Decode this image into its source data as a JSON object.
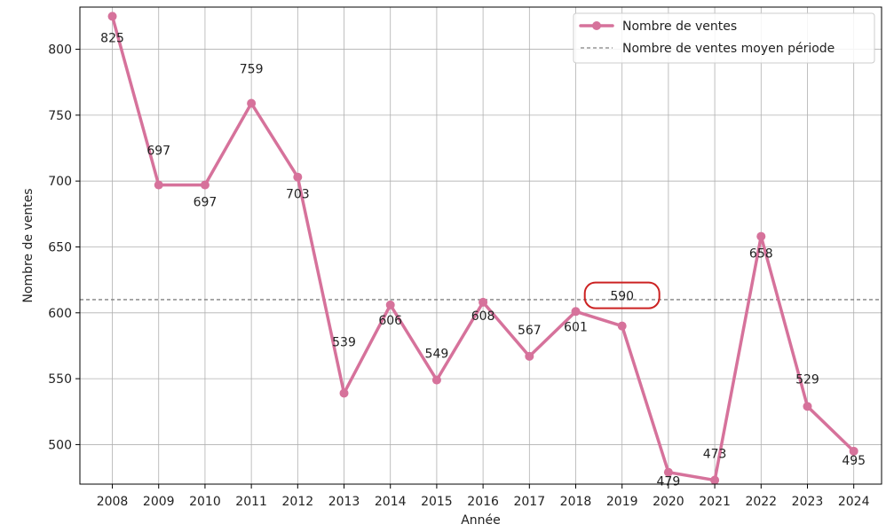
{
  "chart_data": {
    "type": "line",
    "title": "",
    "xlabel": "Année",
    "ylabel": "Nombre de ventes",
    "categories": [
      "2008",
      "2009",
      "2010",
      "2011",
      "2012",
      "2013",
      "2014",
      "2015",
      "2016",
      "2017",
      "2018",
      "2019",
      "2020",
      "2021",
      "2022",
      "2023",
      "2024"
    ],
    "series": [
      {
        "name": "Nombre de ventes",
        "values": [
          825,
          697,
          697,
          759,
          703,
          539,
          606,
          549,
          608,
          567,
          601,
          590,
          479,
          473,
          658,
          529,
          495
        ],
        "color": "#d6729b"
      }
    ],
    "reference_line": {
      "name": "Nombre de ventes moyen période",
      "value": 610,
      "color": "#808080",
      "style": "dashed"
    },
    "data_labels": [
      "825",
      "697",
      "697",
      "759",
      "703",
      "539",
      "606",
      "549",
      "608",
      "567",
      "601",
      "590",
      "479",
      "473",
      "658",
      "529",
      "495"
    ],
    "highlighted_category": "2019",
    "highlight_color": "#cc2222",
    "ylim": [
      470,
      832
    ],
    "yticks": [
      500,
      550,
      600,
      650,
      700,
      750,
      800
    ],
    "grid": true,
    "legend_position": "top-right"
  }
}
